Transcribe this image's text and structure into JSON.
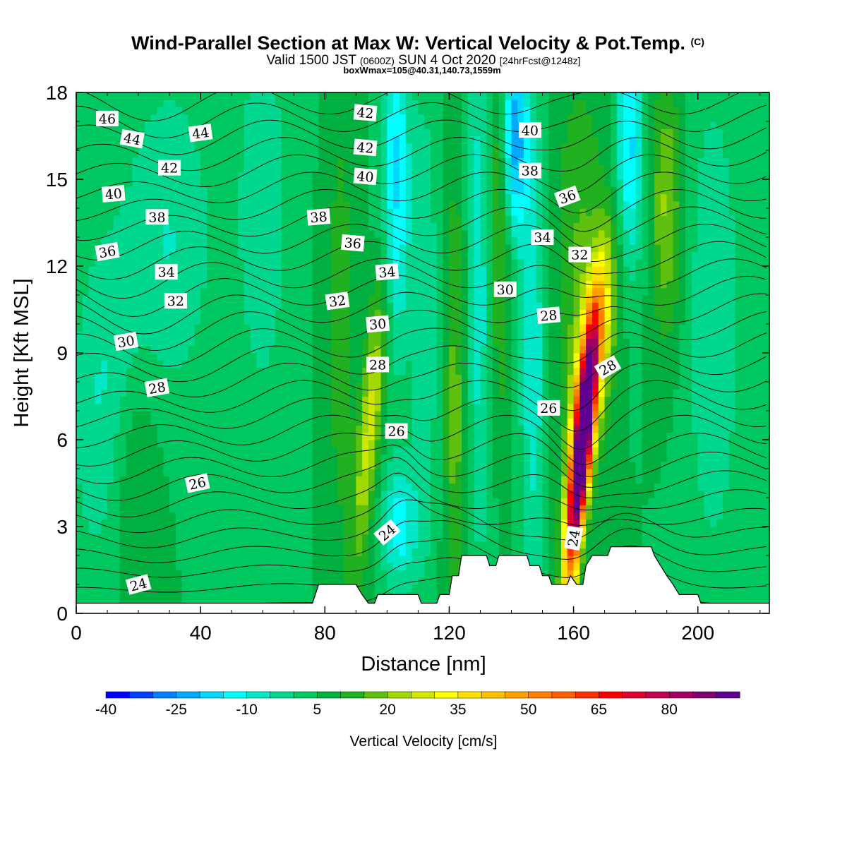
{
  "chart_data": {
    "type": "heatmap",
    "title": "Wind-Parallel Section at Max W: Vertical Velocity & Pot.Temp.",
    "title_mark": "(C)",
    "subtitle": {
      "part1": "Valid 1500 JST",
      "part2": "(0600Z)",
      "part3": "SUN 4 Oct 2020",
      "part4": "[24hrFcst@1248z]"
    },
    "subtitle2": "boxWmax=105@40.31,140.73,1559m",
    "xlabel": "Distance [nm]",
    "ylabel": "Height [Kft MSL]",
    "xlim": [
      0,
      223
    ],
    "ylim": [
      0,
      18
    ],
    "x_ticks": [
      "0",
      "40",
      "80",
      "120",
      "160",
      "200"
    ],
    "y_ticks": [
      "0",
      "3",
      "6",
      "9",
      "12",
      "15",
      "18"
    ],
    "colorbar": {
      "label": "Vertical Velocity [cm/s]",
      "min": -40,
      "max": 90,
      "step": 5,
      "tick_labels": [
        "-40",
        "-25",
        "-10",
        "5",
        "20",
        "35",
        "50",
        "65",
        "80"
      ],
      "colors": [
        "#0000ff",
        "#0040ff",
        "#0080ff",
        "#00a8ff",
        "#00d8ff",
        "#00ffff",
        "#00e8c8",
        "#00d890",
        "#00c860",
        "#00b040",
        "#20b020",
        "#60c010",
        "#a0d800",
        "#d0e800",
        "#ffff00",
        "#ffe000",
        "#ffc000",
        "#ffa000",
        "#ff8000",
        "#ff6000",
        "#ff3000",
        "#ff0000",
        "#e00030",
        "#c00050",
        "#a00060",
        "#800070",
        "#600090"
      ]
    },
    "theta_contour_labels": [
      "46",
      "44",
      "44",
      "42",
      "42",
      "42",
      "40",
      "40",
      "40",
      "38",
      "38",
      "38",
      "36",
      "36",
      "36",
      "34",
      "34",
      "34",
      "32",
      "32",
      "32",
      "30",
      "30",
      "30",
      "28",
      "28",
      "28",
      "28",
      "26",
      "26",
      "26",
      "24",
      "24",
      "24"
    ],
    "w_max": 105,
    "w_max_location": {
      "distance_nm": 162,
      "height_kft": 5
    }
  }
}
